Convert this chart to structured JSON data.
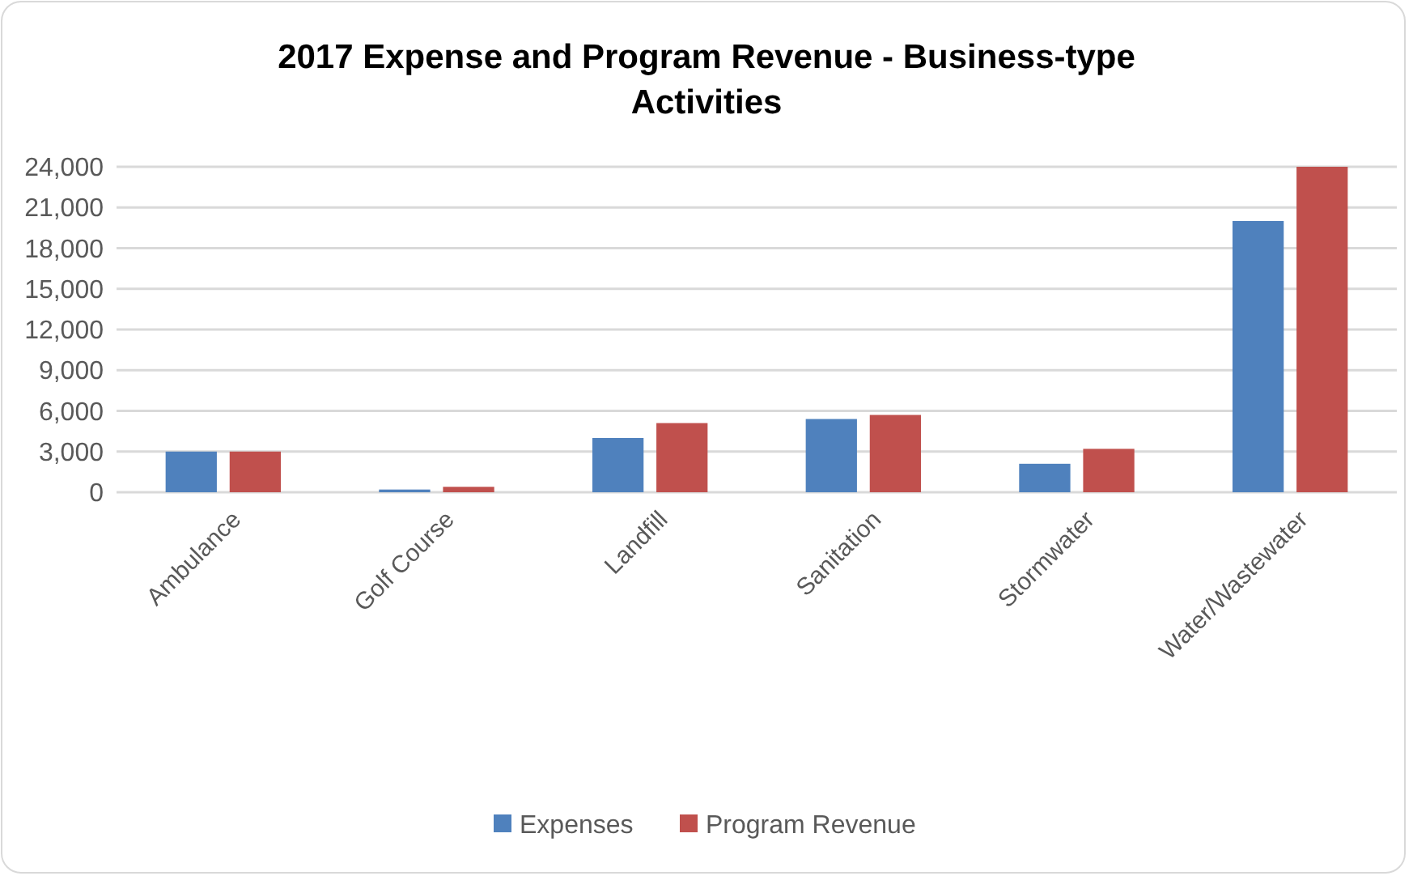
{
  "chart_data": {
    "type": "bar",
    "title": "2017 Expense and Program Revenue - Business-type Activities",
    "categories": [
      "Ambulance",
      "Golf Course",
      "Landfill",
      "Sanitation",
      "Stormwater",
      "Water/Wastewater"
    ],
    "series": [
      {
        "name": "Expenses",
        "color": "#4f81bd",
        "values": [
          3000,
          200,
          4000,
          5400,
          2100,
          20000
        ]
      },
      {
        "name": "Program Revenue",
        "color": "#c0504d",
        "values": [
          3000,
          400,
          5100,
          5700,
          3200,
          24000
        ]
      }
    ],
    "ylim": [
      0,
      24000
    ],
    "yticks": [
      {
        "value": 0,
        "label": "0"
      },
      {
        "value": 3000,
        "label": "3,000"
      },
      {
        "value": 6000,
        "label": "6,000"
      },
      {
        "value": 9000,
        "label": "9,000"
      },
      {
        "value": 12000,
        "label": "12,000"
      },
      {
        "value": 15000,
        "label": "15,000"
      },
      {
        "value": 18000,
        "label": "18,000"
      },
      {
        "value": 21000,
        "label": "21,000"
      },
      {
        "value": 24000,
        "label": "24,000"
      }
    ],
    "grid": "y",
    "legend": "bottom"
  }
}
